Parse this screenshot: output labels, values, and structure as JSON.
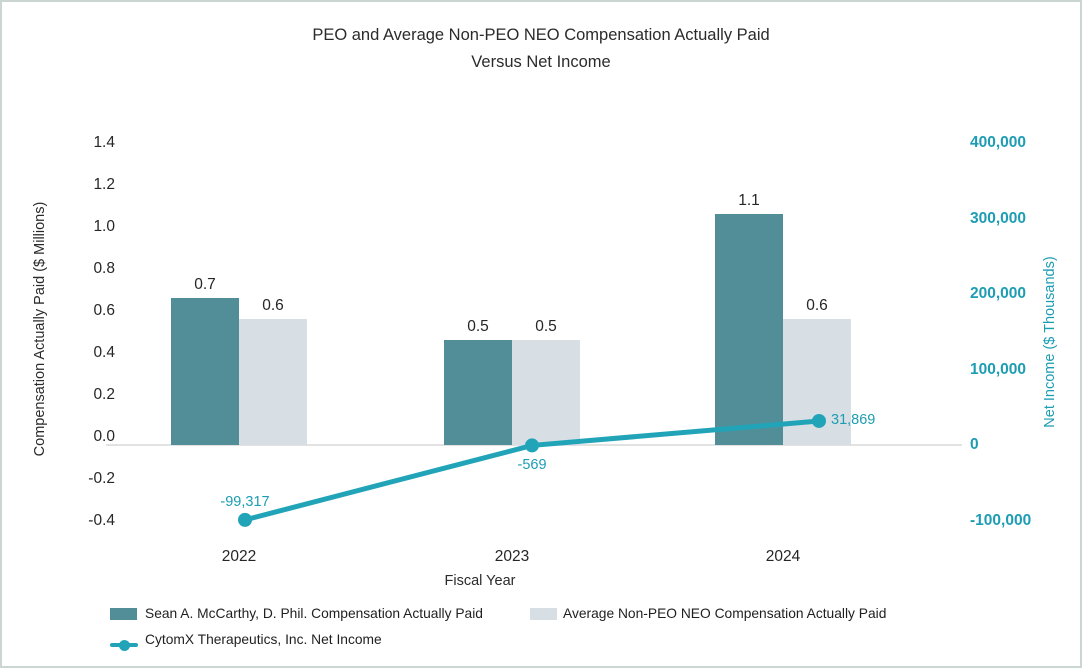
{
  "title": {
    "line1": "PEO and Average Non-PEO NEO Compensation Actually Paid",
    "line2": "Versus Net Income"
  },
  "chart_data": {
    "type": "bar+line",
    "categories": [
      "2022",
      "2023",
      "2024"
    ],
    "series": [
      {
        "name": "Sean A. McCarthy, D. Phil. Compensation Actually Paid",
        "type": "bar",
        "axis": "left",
        "values": [
          0.7,
          0.5,
          1.1
        ],
        "labels": [
          "0.7",
          "0.5",
          "1.1"
        ],
        "color": "#528E98"
      },
      {
        "name": "Average Non-PEO NEO Compensation Actually Paid",
        "type": "bar",
        "axis": "left",
        "values": [
          0.6,
          0.5,
          0.6
        ],
        "labels": [
          "0.6",
          "0.5",
          "0.6"
        ],
        "color": "#D8DFE4"
      },
      {
        "name": "CytomX Therapeutics, Inc. Net Income",
        "type": "line",
        "axis": "right",
        "values": [
          -99317,
          -569,
          31869
        ],
        "labels": [
          "-99,317",
          "-569",
          "31,869"
        ],
        "color": "#22A4B8"
      }
    ],
    "left_axis": {
      "title": "Compensation Actually Paid ($ Millions)",
      "ticks": [
        "1.4",
        "1.2",
        "1.0",
        "0.8",
        "0.6",
        "0.4",
        "0.2",
        "0.0",
        "-0.2",
        "-0.4"
      ],
      "max": 1.4,
      "min": -0.4,
      "step": 0.2
    },
    "right_axis": {
      "title": "Net Income ($ Thousands)",
      "ticks": [
        "400,000",
        "300,000",
        "200,000",
        "100,000",
        "0",
        "-100,000"
      ],
      "max": 400000,
      "min": -100000,
      "step": 100000,
      "color": "#1D9DB3"
    },
    "x_axis": {
      "title": "Fiscal Year"
    },
    "grid": "off",
    "legend_position": "bottom-left"
  }
}
